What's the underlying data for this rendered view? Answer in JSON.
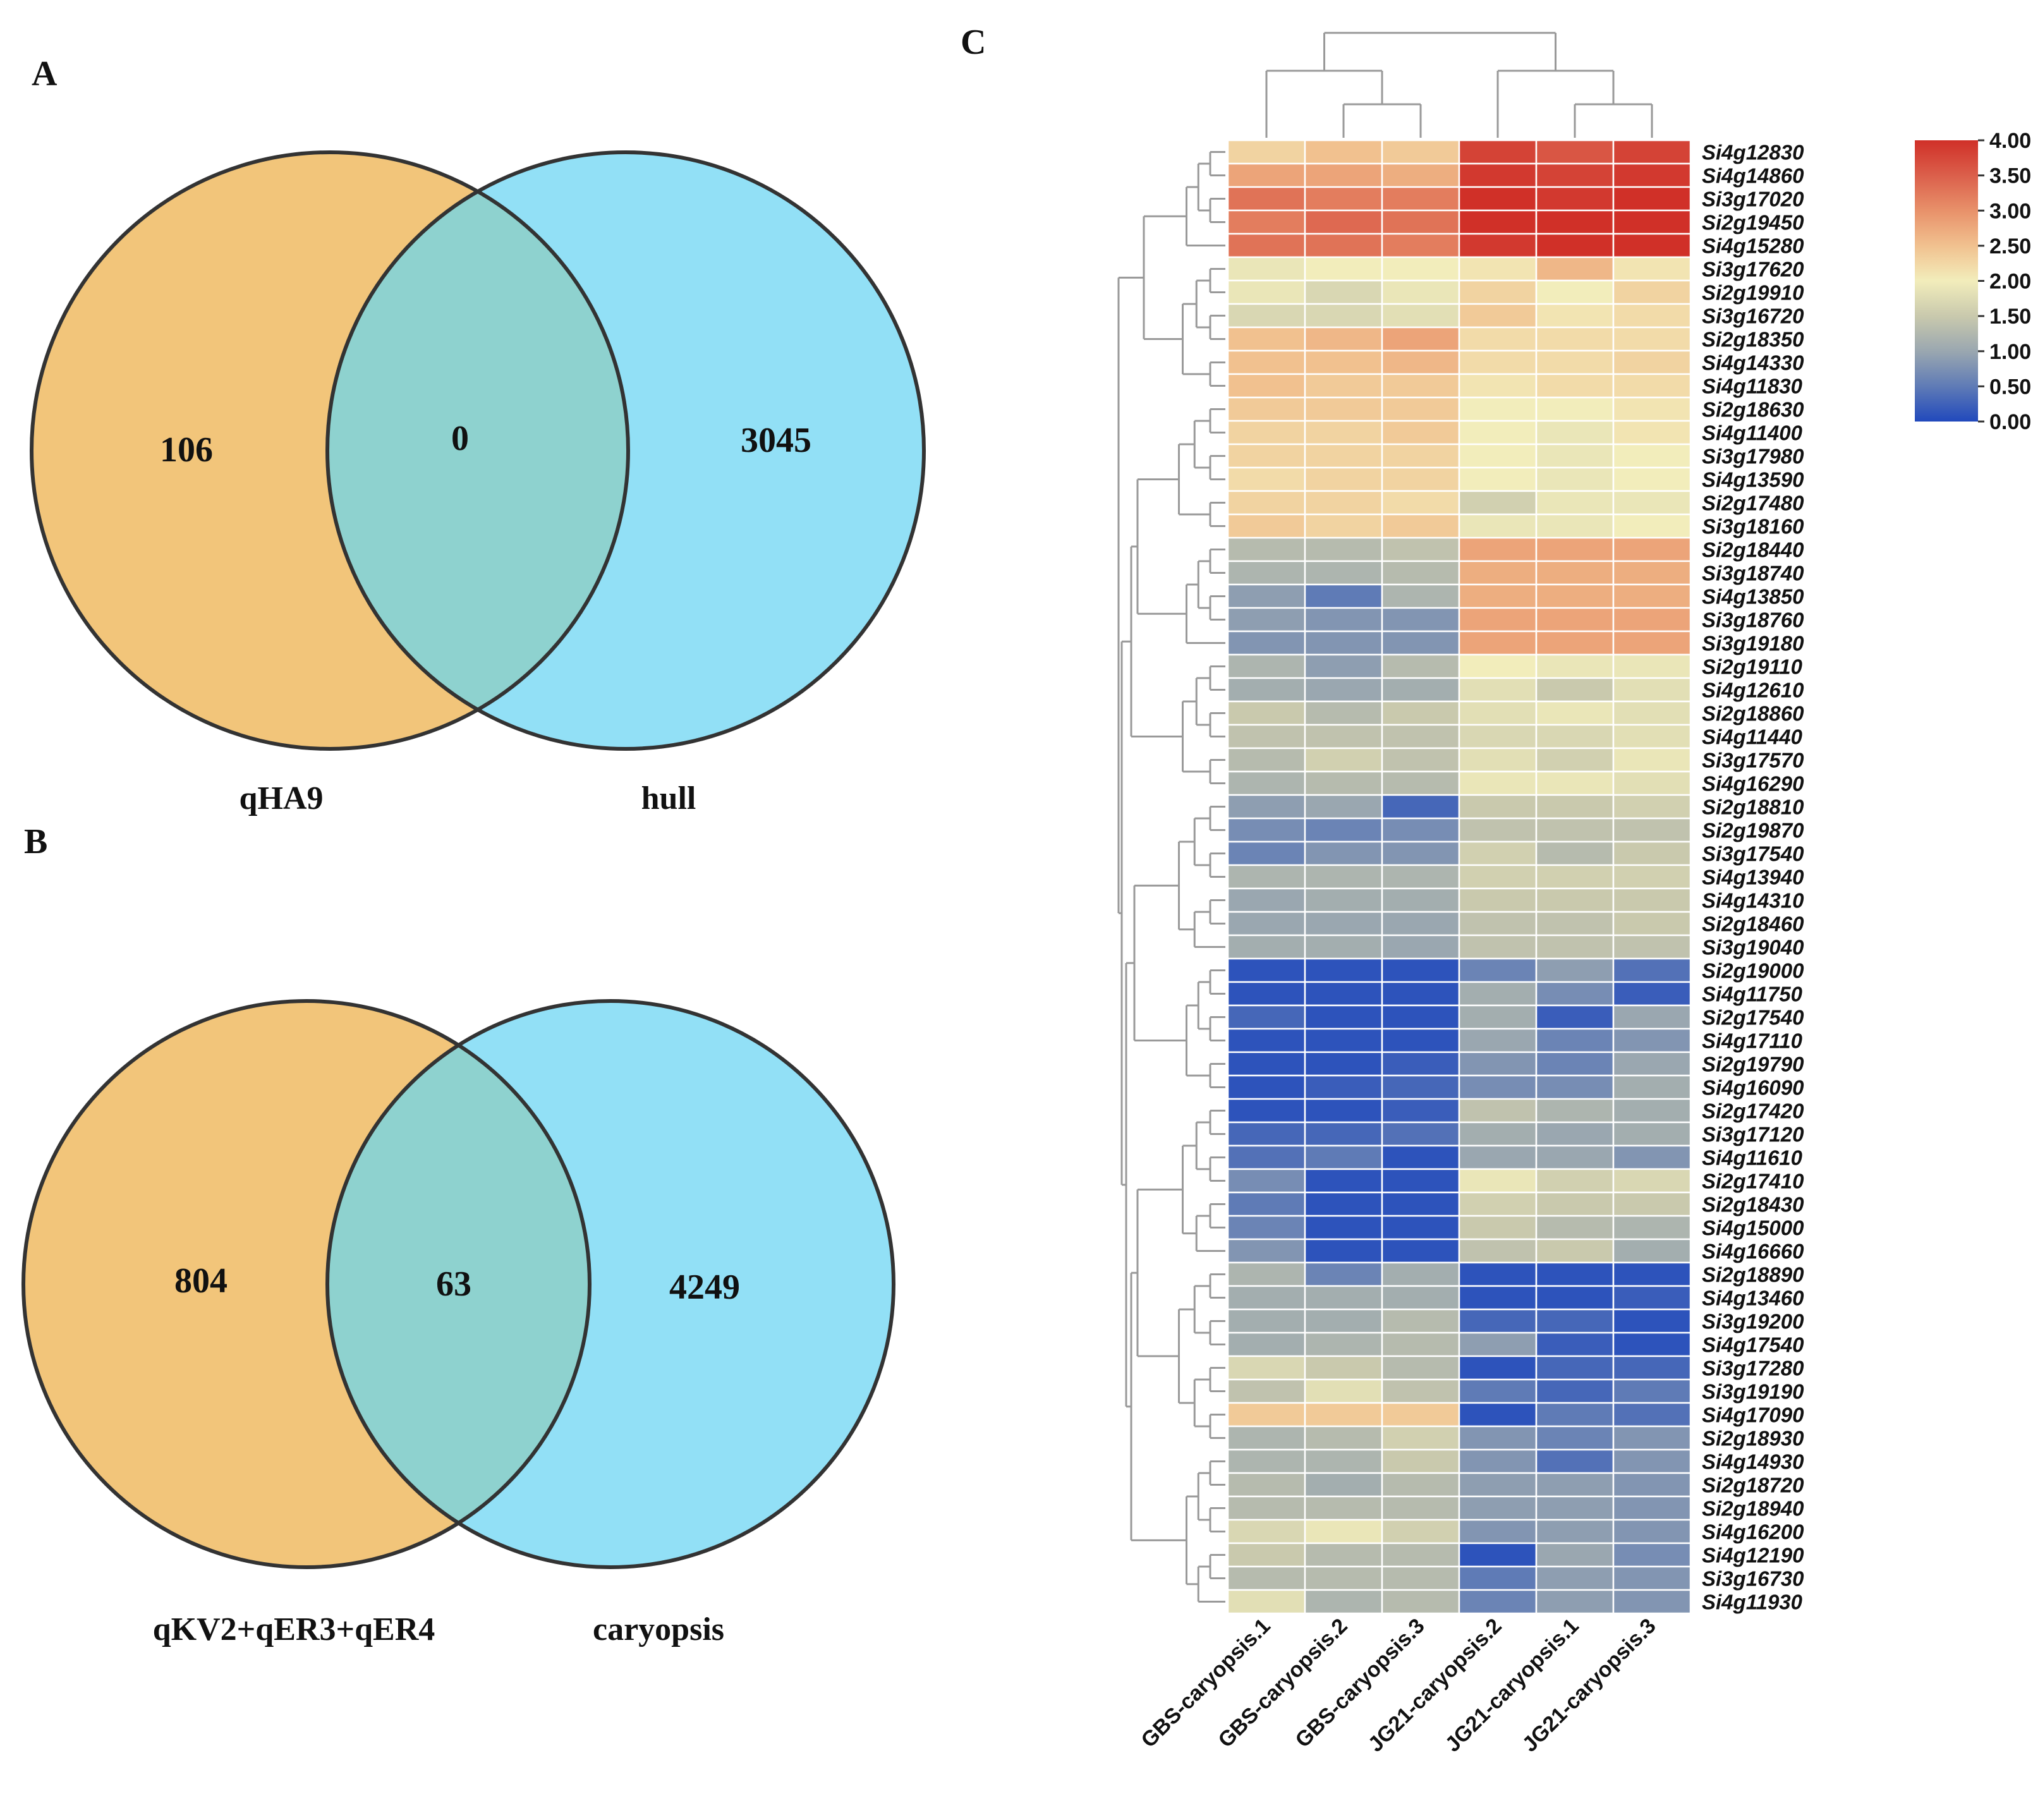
{
  "panels": {
    "a_label": "A",
    "b_label": "B",
    "c_label": "C"
  },
  "colors": {
    "venn_left": "#F2C57A",
    "venn_right": "#92E0F6",
    "venn_overlap": "#8ED2CF",
    "venn_stroke": "#333333",
    "dendro": "#aaaaaa"
  },
  "chart_data": [
    {
      "type": "venn",
      "panel": "A",
      "sets": [
        {
          "name": "qHA9",
          "only": 106
        },
        {
          "name": "hull",
          "only": 3045
        }
      ],
      "overlap": 0
    },
    {
      "type": "venn",
      "panel": "B",
      "sets": [
        {
          "name": "qKV2+qER3+qER4",
          "only": 804
        },
        {
          "name": "caryopsis",
          "only": 4249
        }
      ],
      "overlap": 63
    },
    {
      "type": "heatmap",
      "panel": "C",
      "columns": [
        "GBS-caryopsis.1",
        "GBS-caryopsis.2",
        "GBS-caryopsis.3",
        "JG21-caryopsis.2",
        "JG21-caryopsis.1",
        "JG21-caryopsis.3"
      ],
      "rows": [
        "Si4g12830",
        "Si4g14860",
        "Si3g17020",
        "Si2g19450",
        "Si4g15280",
        "Si3g17620",
        "Si2g19910",
        "Si3g16720",
        "Si2g18350",
        "Si4g14330",
        "Si4g11830",
        "Si2g18630",
        "Si4g11400",
        "Si3g17980",
        "Si4g13590",
        "Si2g17480",
        "Si3g18160",
        "Si2g18440",
        "Si3g18740",
        "Si4g13850",
        "Si3g18760",
        "Si3g19180",
        "Si2g19110",
        "Si4g12610",
        "Si2g18860",
        "Si4g11440",
        "Si3g17570",
        "Si4g16290",
        "Si2g18810",
        "Si2g19870",
        "Si3g17540",
        "Si4g13940",
        "Si4g14310",
        "Si2g18460",
        "Si3g19040",
        "Si2g19000",
        "Si4g11750",
        "Si2g17540",
        "Si4g17110",
        "Si2g19790",
        "Si4g16090",
        "Si2g17420",
        "Si3g17120",
        "Si4g11610",
        "Si2g17410",
        "Si2g18430",
        "Si4g15000",
        "Si4g16660",
        "Si2g18890",
        "Si4g13460",
        "Si3g19200",
        "Si4g17540",
        "Si3g17280",
        "Si3g19190",
        "Si4g17090",
        "Si2g18930",
        "Si4g14930",
        "Si2g18720",
        "Si2g18940",
        "Si4g16200",
        "Si4g12190",
        "Si3g16730",
        "Si4g11930"
      ],
      "values": [
        [
          2.3,
          2.5,
          2.4,
          3.8,
          3.6,
          3.8
        ],
        [
          2.8,
          2.8,
          2.7,
          3.9,
          3.8,
          3.9
        ],
        [
          3.3,
          3.2,
          3.2,
          4.0,
          3.9,
          4.0
        ],
        [
          3.2,
          3.4,
          3.3,
          4.0,
          4.0,
          4.0
        ],
        [
          3.3,
          3.3,
          3.2,
          3.9,
          4.0,
          4.0
        ],
        [
          1.9,
          2.0,
          2.0,
          2.1,
          2.6,
          2.1
        ],
        [
          1.9,
          1.7,
          1.9,
          2.3,
          2.0,
          2.3
        ],
        [
          1.7,
          1.7,
          1.8,
          2.4,
          2.1,
          2.2
        ],
        [
          2.5,
          2.6,
          2.8,
          2.2,
          2.2,
          2.2
        ],
        [
          2.5,
          2.5,
          2.6,
          2.2,
          2.2,
          2.3
        ],
        [
          2.5,
          2.4,
          2.4,
          2.1,
          2.2,
          2.2
        ],
        [
          2.4,
          2.4,
          2.4,
          2.0,
          2.0,
          2.1
        ],
        [
          2.3,
          2.3,
          2.4,
          2.0,
          1.9,
          2.1
        ],
        [
          2.3,
          2.3,
          2.3,
          2.0,
          1.9,
          2.0
        ],
        [
          2.2,
          2.3,
          2.3,
          2.0,
          1.9,
          2.0
        ],
        [
          2.3,
          2.3,
          2.2,
          1.6,
          1.9,
          1.9
        ],
        [
          2.4,
          2.3,
          2.4,
          1.9,
          1.9,
          2.0
        ],
        [
          1.3,
          1.3,
          1.4,
          2.8,
          2.8,
          2.8
        ],
        [
          1.2,
          1.2,
          1.3,
          2.7,
          2.7,
          2.7
        ],
        [
          0.9,
          0.5,
          1.2,
          2.7,
          2.7,
          2.7
        ],
        [
          0.9,
          0.8,
          0.8,
          2.8,
          2.8,
          2.8
        ],
        [
          0.8,
          0.8,
          0.8,
          2.8,
          2.8,
          2.8
        ],
        [
          1.2,
          0.9,
          1.3,
          2.0,
          1.9,
          1.9
        ],
        [
          1.1,
          1.0,
          1.1,
          1.8,
          1.5,
          1.8
        ],
        [
          1.5,
          1.3,
          1.5,
          1.8,
          1.9,
          1.8
        ],
        [
          1.4,
          1.4,
          1.4,
          1.7,
          1.7,
          1.8
        ],
        [
          1.3,
          1.6,
          1.4,
          1.8,
          1.6,
          1.9
        ],
        [
          1.2,
          1.3,
          1.3,
          1.9,
          1.9,
          1.8
        ],
        [
          0.9,
          1.0,
          0.3,
          1.5,
          1.5,
          1.6
        ],
        [
          0.7,
          0.6,
          0.7,
          1.4,
          1.4,
          1.4
        ],
        [
          0.6,
          0.8,
          0.8,
          1.6,
          1.3,
          1.5
        ],
        [
          1.2,
          1.2,
          1.2,
          1.6,
          1.6,
          1.6
        ],
        [
          1.0,
          1.1,
          1.1,
          1.5,
          1.5,
          1.5
        ],
        [
          1.0,
          1.0,
          1.0,
          1.4,
          1.4,
          1.5
        ],
        [
          1.1,
          1.1,
          1.0,
          1.4,
          1.4,
          1.4
        ],
        [
          0.1,
          0.1,
          0.1,
          0.6,
          0.9,
          0.4
        ],
        [
          0.1,
          0.1,
          0.1,
          1.1,
          0.7,
          0.2
        ],
        [
          0.3,
          0.1,
          0.1,
          1.1,
          0.2,
          1.0
        ],
        [
          0.1,
          0.1,
          0.1,
          1.0,
          0.6,
          0.8
        ],
        [
          0.1,
          0.1,
          0.2,
          0.8,
          0.6,
          1.0
        ],
        [
          0.1,
          0.2,
          0.3,
          0.7,
          0.7,
          1.1
        ],
        [
          0.1,
          0.1,
          0.2,
          1.4,
          1.2,
          1.1
        ],
        [
          0.3,
          0.3,
          0.4,
          1.1,
          1.0,
          1.1
        ],
        [
          0.4,
          0.5,
          0.1,
          1.0,
          1.0,
          0.8
        ],
        [
          0.7,
          0.1,
          0.1,
          1.9,
          1.6,
          1.7
        ],
        [
          0.5,
          0.1,
          0.1,
          1.6,
          1.5,
          1.5
        ],
        [
          0.6,
          0.1,
          0.1,
          1.5,
          1.3,
          1.2
        ],
        [
          0.8,
          0.1,
          0.1,
          1.4,
          1.5,
          1.1
        ],
        [
          1.2,
          0.6,
          1.1,
          0.1,
          0.1,
          0.1
        ],
        [
          1.1,
          1.1,
          1.1,
          0.1,
          0.1,
          0.2
        ],
        [
          1.1,
          1.1,
          1.3,
          0.3,
          0.3,
          0.1
        ],
        [
          1.1,
          1.2,
          1.3,
          0.9,
          0.2,
          0.1
        ],
        [
          1.7,
          1.5,
          1.3,
          0.1,
          0.3,
          0.3
        ],
        [
          1.4,
          1.8,
          1.4,
          0.5,
          0.3,
          0.5
        ],
        [
          2.4,
          2.4,
          2.4,
          0.1,
          0.5,
          0.4
        ],
        [
          1.2,
          1.3,
          1.6,
          0.8,
          0.6,
          0.8
        ],
        [
          1.2,
          1.2,
          1.5,
          0.8,
          0.4,
          0.8
        ],
        [
          1.3,
          1.1,
          1.3,
          0.9,
          0.9,
          0.8
        ],
        [
          1.3,
          1.3,
          1.3,
          0.9,
          0.9,
          0.8
        ],
        [
          1.7,
          1.9,
          1.6,
          0.8,
          0.9,
          0.8
        ],
        [
          1.5,
          1.3,
          1.3,
          0.1,
          1.0,
          0.7
        ],
        [
          1.3,
          1.3,
          1.3,
          0.5,
          0.9,
          0.8
        ],
        [
          1.8,
          1.2,
          1.3,
          0.6,
          0.9,
          0.8
        ]
      ],
      "row_groups": [
        5,
        6,
        6,
        5,
        6,
        7,
        6,
        7,
        8,
        7
      ],
      "legend": {
        "ticks": [
          "4.00",
          "3.50",
          "3.00",
          "2.50",
          "2.00",
          "1.50",
          "1.00",
          "0.50",
          "0.00"
        ],
        "range": [
          0,
          4
        ]
      }
    }
  ]
}
